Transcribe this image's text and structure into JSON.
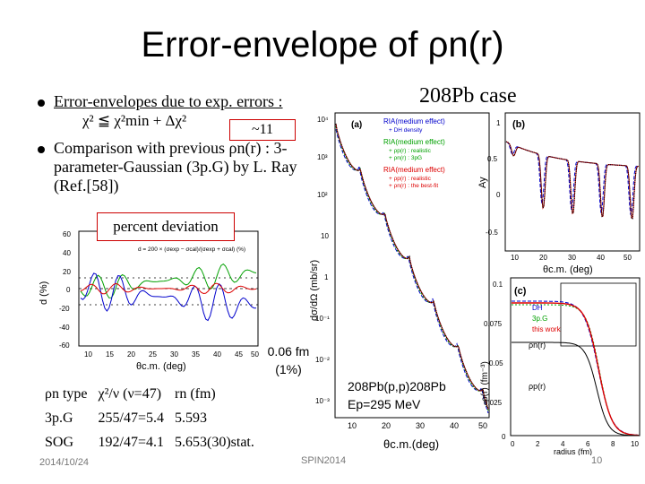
{
  "slide": {
    "title": "Error-envelope of ρn(r)",
    "pb_case": "208Pb case",
    "bullet1": "Error-envelopes due to exp. errors :",
    "bullet1_eq": "χ² ≦ χ²min + Δχ²",
    "callout_11": "~11",
    "bullet2": "Comparison with previous ρn(r) : 3-",
    "bullet2_cont": "parameter-Gaussian (3p.G) by L. Ray (Ref.[58])",
    "percent_label": "percent deviation",
    "callout_006": "0.06 fm (1%)",
    "footer_date": "2014/10/24",
    "footer_conf": "SPIN2014",
    "page_number": "10"
  },
  "table": {
    "headers": [
      "ρn type",
      "χ²/ν (ν=47)",
      "rn (fm)"
    ],
    "rows": [
      [
        "3p.G",
        "255/47=5.4",
        "5.593"
      ],
      [
        "SOG",
        "192/47=4.1",
        "5.653(30)stat."
      ]
    ]
  },
  "panel_small": {
    "ylabel": "d (%)",
    "xlabel": "θc.m. (deg)",
    "formula": "d = 200 × (σexp − σcal)/(σexp + σcal) (%)",
    "yticks": [
      "60",
      "40",
      "20",
      "0",
      "-20",
      "-40",
      "-60"
    ],
    "xticks": [
      "10",
      "15",
      "20",
      "25",
      "30",
      "35",
      "40",
      "45",
      "50"
    ]
  },
  "panel_main": {
    "label": "(a)",
    "ylabel": "dσ/dΩ (mb/sr)",
    "xlabel": "θc.m.(deg)",
    "yticks": [
      "10⁴",
      "10³",
      "10²",
      "10",
      "1",
      "10⁻¹",
      "10⁻²",
      "10⁻³"
    ],
    "xticks": [
      "10",
      "20",
      "30",
      "40",
      "50"
    ],
    "reaction": "208Pb(p,p)208Pb",
    "energy": "Ep=295 MeV",
    "legend": [
      {
        "text": "RIA(medium effect)",
        "color": "#0000cc"
      },
      {
        "text": "+ DH density",
        "color": "#0000cc"
      },
      {
        "text": "RIA(medium effect)",
        "color": "#00a000"
      },
      {
        "text": "+ ρp(r) : realistic",
        "color": "#00a000"
      },
      {
        "text": "+ ρn(r) : 3pG",
        "color": "#00a000"
      },
      {
        "text": "RIA(medium effect)",
        "color": "#dd0000"
      },
      {
        "text": "+ ρp(r) : realistic",
        "color": "#dd0000"
      },
      {
        "text": "+ ρn(r) : the best-fit",
        "color": "#dd0000"
      }
    ]
  },
  "panel_b": {
    "label": "(b)",
    "ylabel": "Ay",
    "xlabel": "θc.m. (deg)",
    "yticks": [
      "1",
      "0.5",
      "0",
      "-0.5"
    ],
    "xticks": [
      "10",
      "20",
      "30",
      "40",
      "50"
    ]
  },
  "panel_c": {
    "label": "(c)",
    "ylabel": "ρ(r) (fm⁻³)",
    "xlabel": "radius (fm)",
    "yticks": [
      "0.1",
      "0.075",
      "0.05",
      "0.025",
      "0"
    ],
    "xticks": [
      "0",
      "2",
      "4",
      "6",
      "8",
      "10"
    ],
    "legend": [
      {
        "text": "DH",
        "color": "#0000cc"
      },
      {
        "text": "3p.G",
        "color": "#00a000"
      },
      {
        "text": "this work",
        "color": "#dd0000"
      }
    ],
    "rho_n": "ρn(r)",
    "rho_p": "ρp(r)"
  }
}
